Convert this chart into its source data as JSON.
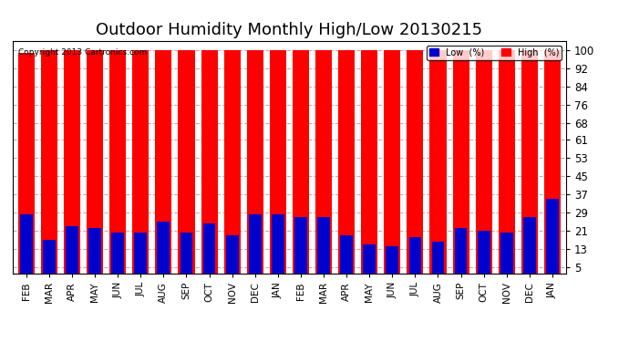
{
  "title": "Outdoor Humidity Monthly High/Low 20130215",
  "copyright_text": "Copyright 2013 Cartronics.com",
  "months": [
    "FEB",
    "MAR",
    "APR",
    "MAY",
    "JUN",
    "JUL",
    "AUG",
    "SEP",
    "OCT",
    "NOV",
    "DEC",
    "JAN",
    "FEB",
    "MAR",
    "APR",
    "MAY",
    "JUN",
    "JUL",
    "AUG",
    "SEP",
    "OCT",
    "NOV",
    "DEC",
    "JAN"
  ],
  "high_values": [
    99,
    100,
    100,
    100,
    100,
    100,
    100,
    100,
    100,
    100,
    100,
    100,
    100,
    100,
    100,
    100,
    100,
    100,
    100,
    100,
    100,
    100,
    100,
    100
  ],
  "low_values": [
    28,
    17,
    23,
    22,
    20,
    20,
    25,
    20,
    24,
    19,
    28,
    28,
    27,
    27,
    19,
    15,
    14,
    18,
    16,
    22,
    21,
    20,
    27,
    35
  ],
  "high_color": "#FF0000",
  "low_color": "#0000CD",
  "background_color": "#FFFFFF",
  "plot_bg_color": "#FFFFFF",
  "yticks": [
    5,
    13,
    21,
    29,
    37,
    45,
    53,
    61,
    68,
    76,
    84,
    92,
    100
  ],
  "ylim": [
    2,
    104
  ],
  "red_bar_width": 0.72,
  "blue_bar_width": 0.55,
  "title_fontsize": 13,
  "legend_low_label": "Low  (%)",
  "legend_high_label": "High  (%)"
}
